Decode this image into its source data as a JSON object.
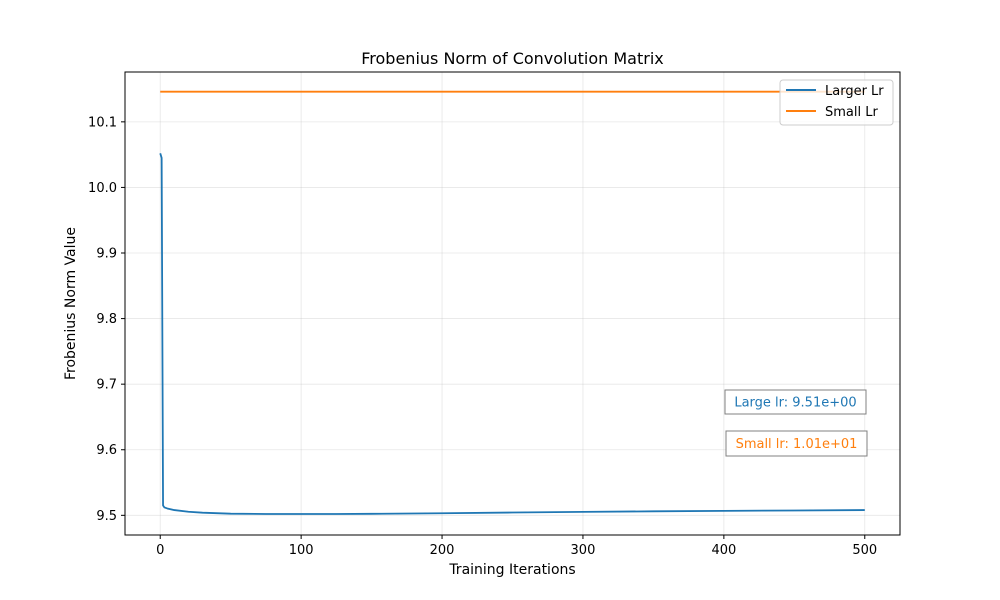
{
  "chart_data": {
    "type": "line",
    "title": "Frobenius Norm of Convolution Matrix",
    "xlabel": "Training Iterations",
    "ylabel": "Frobenius Norm Value",
    "xlim": [
      -25,
      525
    ],
    "ylim": [
      9.47,
      10.176
    ],
    "xticks": [
      0,
      100,
      200,
      300,
      400,
      500
    ],
    "xtick_labels": [
      "0",
      "100",
      "200",
      "300",
      "400",
      "500"
    ],
    "yticks": [
      9.5,
      9.6,
      9.7,
      9.8,
      9.9,
      10.0,
      10.1
    ],
    "ytick_labels": [
      "9.5",
      "9.6",
      "9.7",
      "9.8",
      "9.9",
      "10.0",
      "10.1"
    ],
    "grid": true,
    "legend_position": "top-right",
    "series": [
      {
        "name": "Larger Lr",
        "color": "#1f77b4",
        "x": [
          0,
          1,
          2,
          3,
          5,
          10,
          20,
          30,
          50,
          75,
          100,
          125,
          150,
          200,
          250,
          300,
          350,
          400,
          450,
          500
        ],
        "y": [
          10.052,
          10.045,
          9.515,
          9.512,
          9.5105,
          9.508,
          9.5055,
          9.504,
          9.5025,
          9.502,
          9.502,
          9.502,
          9.5023,
          9.5032,
          9.5043,
          9.5053,
          9.5061,
          9.5068,
          9.5074,
          9.508
        ]
      },
      {
        "name": "Small Lr",
        "color": "#ff7f0e",
        "x": [
          0,
          100,
          200,
          300,
          400,
          500
        ],
        "y": [
          10.146,
          10.146,
          10.146,
          10.146,
          10.146,
          10.146
        ]
      }
    ],
    "annotations": [
      {
        "text": "Large lr: 9.51e+00",
        "color": "#1f77b4"
      },
      {
        "text": "Small lr: 1.01e+01",
        "color": "#ff7f0e"
      }
    ]
  }
}
